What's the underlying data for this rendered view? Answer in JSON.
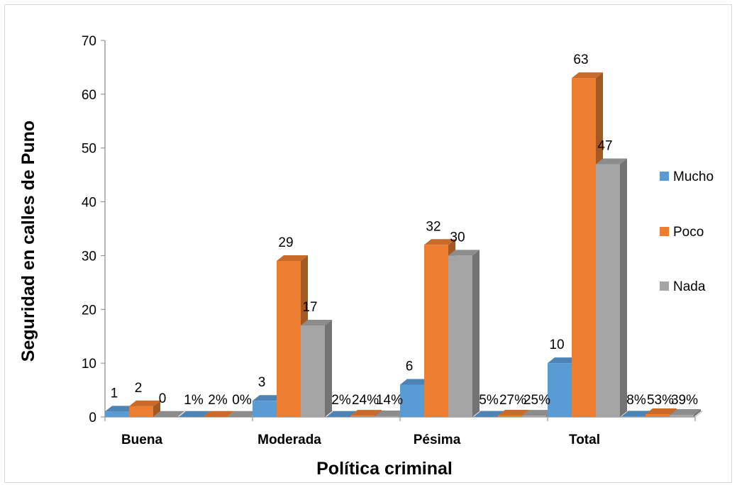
{
  "chart_data": {
    "type": "bar",
    "variant": "3d-clustered-column",
    "title": "",
    "xlabel": "Política criminal",
    "ylabel": "Seguridad en calles de Puno",
    "ylim": [
      0,
      70
    ],
    "yticks": [
      0,
      10,
      20,
      30,
      40,
      50,
      60,
      70
    ],
    "grid": false,
    "legend_position": "right",
    "categories": [
      "Buena",
      "",
      "Moderada",
      "",
      "Pésima",
      "",
      "Total",
      ""
    ],
    "series": [
      {
        "name": "Mucho",
        "color": "#5b9bd5",
        "values": [
          1,
          0.01,
          3,
          0.02,
          6,
          0.05,
          10,
          0.08
        ],
        "labels": [
          "1",
          "1%",
          "3",
          "2%",
          "6",
          "5%",
          "10",
          "8%"
        ]
      },
      {
        "name": "Poco",
        "color": "#ed7d31",
        "values": [
          2,
          0.02,
          29,
          0.24,
          32,
          0.27,
          63,
          0.53
        ],
        "labels": [
          "2",
          "2%",
          "29",
          "24%",
          "32",
          "27%",
          "63",
          "53%"
        ]
      },
      {
        "name": "Nada",
        "color": "#a5a5a5",
        "values": [
          0,
          0,
          17,
          0.14,
          30,
          0.25,
          47,
          0.39
        ],
        "labels": [
          "0",
          "0%",
          "17",
          "14%",
          "30",
          "25%",
          "47",
          "39%"
        ]
      }
    ]
  }
}
